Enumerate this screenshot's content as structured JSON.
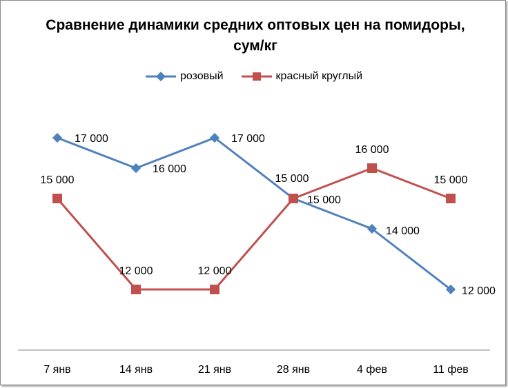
{
  "chart_data": {
    "type": "line",
    "title": "Сравнение динамики средних оптовых цен на помидоры, сум/кг",
    "categories": [
      "7 янв",
      "14 янв",
      "21 янв",
      "28 янв",
      "4 фев",
      "11 фев"
    ],
    "series": [
      {
        "name": "розовый",
        "color": "#4F81BD",
        "marker": "diamond",
        "values": [
          17000,
          16000,
          17000,
          15000,
          14000,
          12000
        ],
        "labels": [
          "17 000",
          "16 000",
          "17 000",
          "15 000",
          "14 000",
          "12 000"
        ]
      },
      {
        "name": "красный круглый",
        "color": "#C0504D",
        "marker": "square",
        "values": [
          15000,
          12000,
          12000,
          15000,
          16000,
          15000
        ],
        "labels": [
          "15 000",
          "12 000",
          "12 000",
          "15 000",
          "16 000",
          "15 000"
        ]
      }
    ],
    "ylim": [
      10000,
      18000
    ],
    "legend_position": "top",
    "grid": false
  }
}
